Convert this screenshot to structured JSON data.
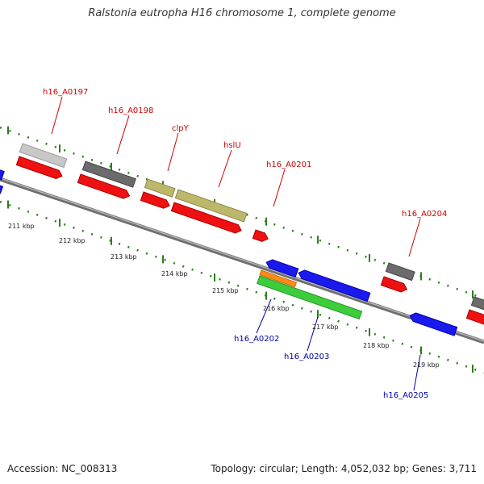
{
  "title": "Ralstonia eutropha H16 chromosome 1, complete genome",
  "footer": {
    "accession": "Accession: NC_008313",
    "topology": "Topology: circular; Length: 4,052,032 bp; Genes: 3,711"
  },
  "colors": {
    "backbone": "#8a8a8a",
    "tick": "#2e7d1e",
    "gene_red": "#ee1111",
    "gene_blue": "#1a1aee",
    "gene_green": "#3ccc3c",
    "gene_orange": "#ff8c1a",
    "gene_khaki": "#bdb76b",
    "gene_darkgray": "#6b6b6b",
    "gene_lightgray": "#c8c8c8",
    "label_forward": "#cc0000",
    "label_reverse": "#0000aa"
  },
  "kbp_labels": [
    "211 kbp",
    "212 kbp",
    "213 kbp",
    "214 kbp",
    "215 kbp",
    "216 kbp",
    "217 kbp",
    "218 kbp",
    "219 kbp"
  ],
  "genes_forward": [
    {
      "label": "h16_A0197"
    },
    {
      "label": "h16_A0198"
    },
    {
      "label": "clpY"
    },
    {
      "label": "hslU"
    },
    {
      "label": "h16_A0201"
    },
    {
      "label": "h16_A0204"
    }
  ],
  "genes_reverse": [
    {
      "label": "h16_A0202"
    },
    {
      "label": "h16_A0203"
    },
    {
      "label": "h16_A0205"
    }
  ]
}
